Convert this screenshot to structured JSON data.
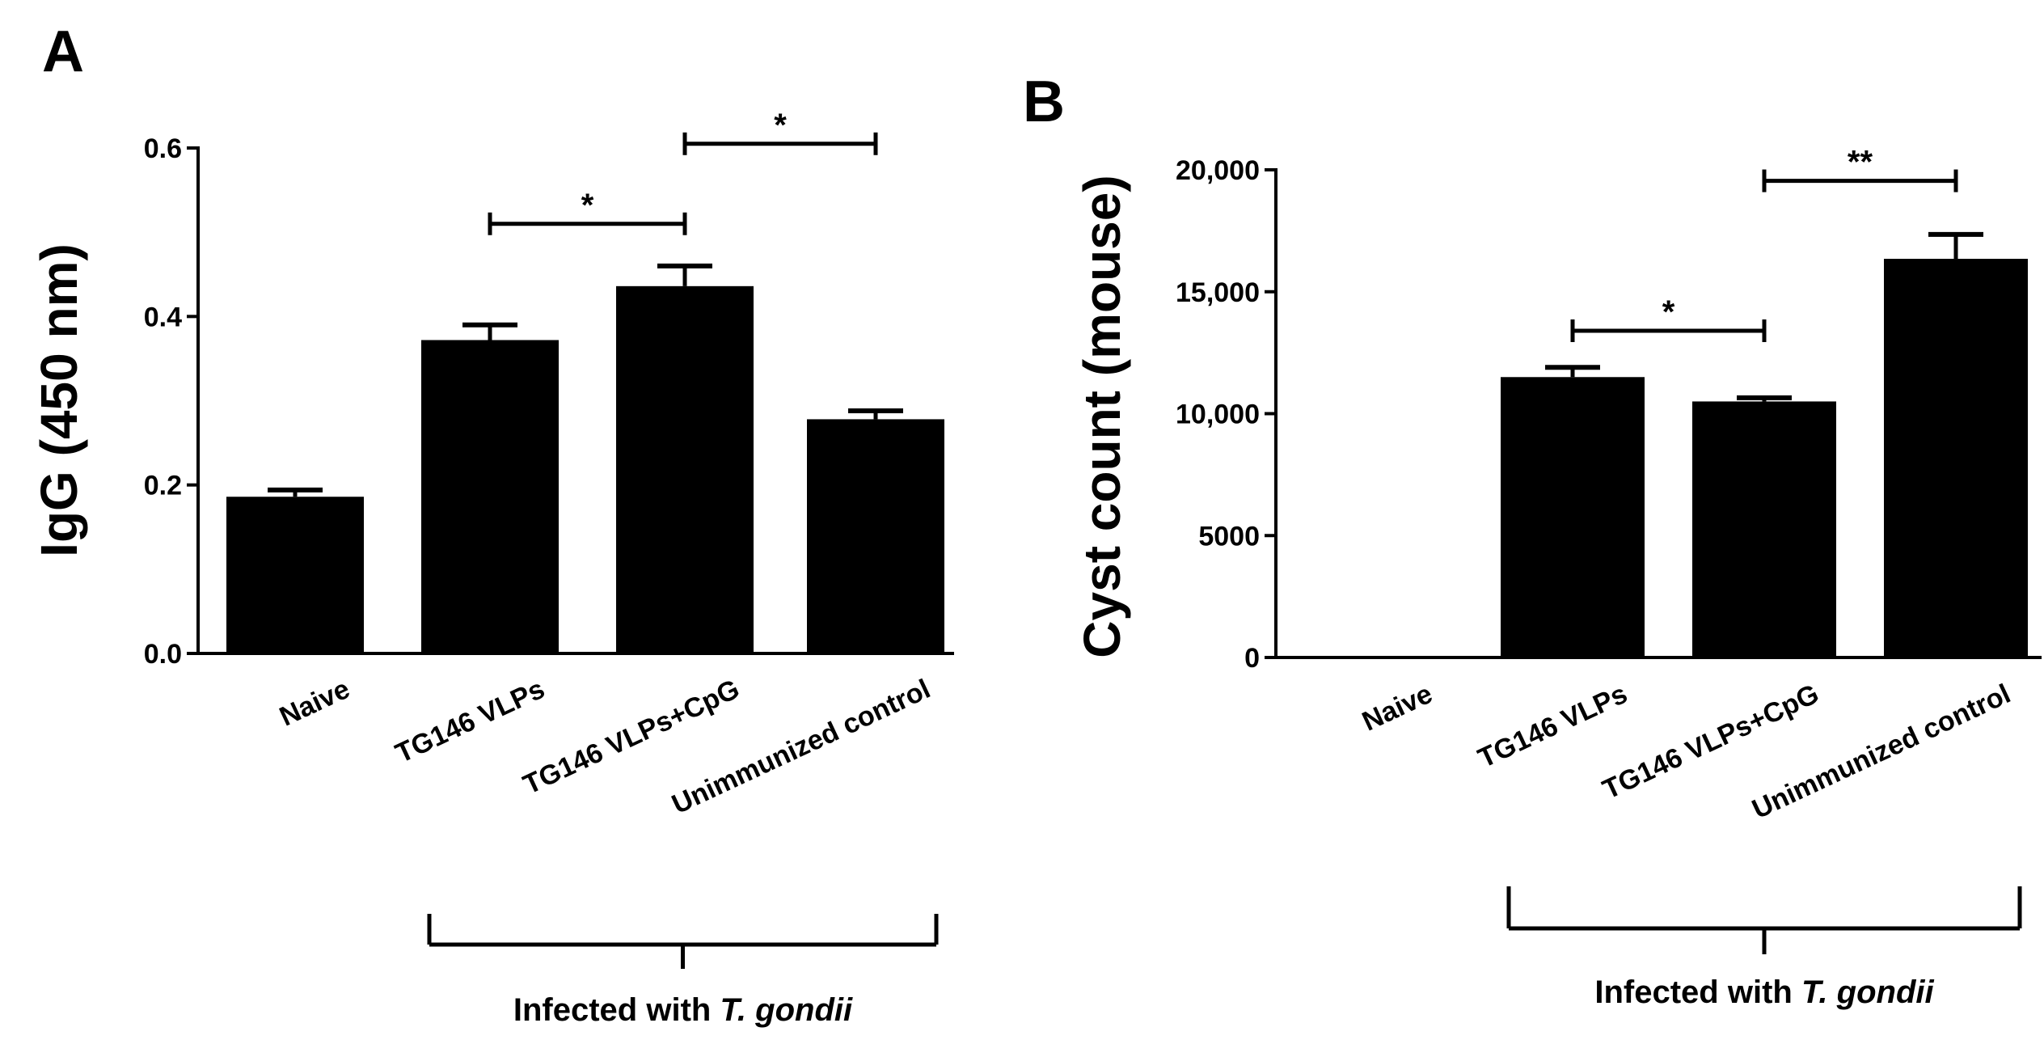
{
  "chart_data": [
    {
      "panel": "A",
      "type": "bar",
      "title": "",
      "xlabel": "",
      "ylabel": "IgG (450 nm)",
      "ylim": [
        0,
        0.6
      ],
      "yticks": [
        0,
        0.2,
        0.4,
        0.6
      ],
      "ytick_labels": [
        "0.0",
        "0.2",
        "0.4",
        "0.6"
      ],
      "categories": [
        "Naive",
        "TG146 VLPs",
        "TG146 VLPs+CpG",
        "Unimmunized control"
      ],
      "values": [
        0.186,
        0.372,
        0.436,
        0.278
      ],
      "errors": [
        0.008,
        0.018,
        0.024,
        0.01
      ],
      "significance": [
        {
          "from": 1,
          "to": 2,
          "label": "*",
          "y": 0.51
        },
        {
          "from": 2,
          "to": 3,
          "label": "*",
          "y": 0.605
        }
      ],
      "group_label": {
        "prefix": "Infected with ",
        "italic": "T. gondii",
        "from": 1,
        "to": 3
      }
    },
    {
      "panel": "B",
      "type": "bar",
      "title": "",
      "xlabel": "",
      "ylabel": "Cyst count (mouse)",
      "ylim": [
        0,
        20000
      ],
      "yticks": [
        0,
        5000,
        10000,
        15000,
        20000
      ],
      "ytick_labels": [
        "0",
        "5000",
        "10,000",
        "15,000",
        "20,000"
      ],
      "categories": [
        "Naive",
        "TG146 VLPs",
        "TG146 VLPs+CpG",
        "Unimmunized control"
      ],
      "values": [
        0,
        11500,
        10500,
        16350
      ],
      "errors": [
        0,
        400,
        150,
        1000
      ],
      "significance": [
        {
          "from": 1,
          "to": 2,
          "label": "*",
          "y": 13400
        },
        {
          "from": 2,
          "to": 3,
          "label": "**",
          "y": 19550
        }
      ],
      "group_label": {
        "prefix": "Infected with ",
        "italic": "T. gondii",
        "from": 1,
        "to": 3
      }
    }
  ]
}
